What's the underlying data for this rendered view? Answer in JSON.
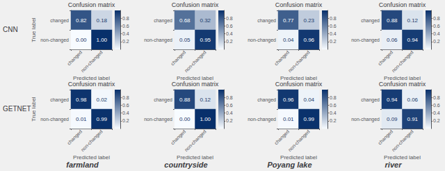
{
  "chart_data": [
    {
      "type": "heatmap",
      "title": "Confusion matrix",
      "xlabel": "Predicted label",
      "ylabel": "True label",
      "x": [
        "changed",
        "non-changed"
      ],
      "y": [
        "changed",
        "non-changed"
      ],
      "values": [
        [
          0.82,
          0.18
        ],
        [
          0.0,
          1.0
        ]
      ],
      "value_labels": [
        [
          "0.82",
          "0.18"
        ],
        [
          "0.00",
          "1.00"
        ]
      ],
      "colorbar": {
        "range": [
          0.0,
          1.0
        ],
        "ticks": [
          0.2,
          0.4,
          0.6,
          0.8
        ]
      },
      "data_labels": true,
      "color": "#08306b"
    },
    {
      "type": "heatmap",
      "title": "Confusion matrix",
      "xlabel": "Predicted label",
      "x": [
        "changed",
        "non-changed"
      ],
      "y": [
        "changed",
        "non-changed"
      ],
      "values": [
        [
          0.68,
          0.32
        ],
        [
          0.05,
          0.95
        ]
      ],
      "value_labels": [
        [
          "0.68",
          "0.32"
        ],
        [
          "0.05",
          "0.95"
        ]
      ],
      "colorbar": {
        "range": [
          0.0,
          1.0
        ],
        "ticks": [
          0.2,
          0.4,
          0.6,
          0.8
        ]
      },
      "data_labels": true,
      "color": "#08306b"
    },
    {
      "type": "heatmap",
      "title": "Confusion matrix",
      "xlabel": "Predicted label",
      "x": [
        "changed",
        "non-changed"
      ],
      "y": [
        "changed",
        "non-changed"
      ],
      "values": [
        [
          0.77,
          0.23
        ],
        [
          0.04,
          0.96
        ]
      ],
      "value_labels": [
        [
          "0.77",
          "0.23"
        ],
        [
          "0.04",
          "0.96"
        ]
      ],
      "colorbar": {
        "range": [
          0.0,
          1.0
        ],
        "ticks": [
          0.2,
          0.4,
          0.6,
          0.8
        ]
      },
      "data_labels": true,
      "color": "#08306b"
    },
    {
      "type": "heatmap",
      "title": "Confusion matrix",
      "xlabel": "Predicted label",
      "x": [
        "changed",
        "non-changed"
      ],
      "y": [
        "changed",
        "non-changed"
      ],
      "values": [
        [
          0.88,
          0.12
        ],
        [
          0.06,
          0.94
        ]
      ],
      "value_labels": [
        [
          "0.88",
          "0.12"
        ],
        [
          "0.06",
          "0.94"
        ]
      ],
      "colorbar": {
        "range": [
          0.0,
          1.0
        ],
        "ticks": [
          0.2,
          0.4,
          0.6,
          0.8
        ]
      },
      "data_labels": true,
      "color": "#08306b"
    },
    {
      "type": "heatmap",
      "title": "Confusion matrix",
      "xlabel": "Predicted label",
      "ylabel": "True label",
      "x": [
        "changed",
        "non-changed"
      ],
      "y": [
        "changed",
        "non-changed"
      ],
      "values": [
        [
          0.98,
          0.02
        ],
        [
          0.01,
          0.99
        ]
      ],
      "value_labels": [
        [
          "0.98",
          "0.02"
        ],
        [
          "0.01",
          "0.99"
        ]
      ],
      "colorbar": {
        "range": [
          0.0,
          1.0
        ],
        "ticks": [
          0.2,
          0.4,
          0.6,
          0.8
        ]
      },
      "data_labels": true,
      "color": "#08306b"
    },
    {
      "type": "heatmap",
      "title": "Confusion matrix",
      "xlabel": "Predicted label",
      "x": [
        "changed",
        "non-changed"
      ],
      "y": [
        "changed",
        "non-changed"
      ],
      "values": [
        [
          0.88,
          0.12
        ],
        [
          0.0,
          1.0
        ]
      ],
      "value_labels": [
        [
          "0.88",
          "0.12"
        ],
        [
          "0.00",
          "1.00"
        ]
      ],
      "colorbar": {
        "range": [
          0.0,
          1.0
        ],
        "ticks": [
          0.2,
          0.4,
          0.6,
          0.8
        ]
      },
      "data_labels": true,
      "color": "#08306b"
    },
    {
      "type": "heatmap",
      "title": "Confusion matrix",
      "xlabel": "Predicted label",
      "x": [
        "changed",
        "non-changed"
      ],
      "y": [
        "changed",
        "non-changed"
      ],
      "values": [
        [
          0.96,
          0.04
        ],
        [
          0.01,
          0.99
        ]
      ],
      "value_labels": [
        [
          "0.96",
          "0.04"
        ],
        [
          "0.01",
          "0.99"
        ]
      ],
      "colorbar": {
        "range": [
          0.0,
          1.0
        ],
        "ticks": [
          0.2,
          0.4,
          0.6,
          0.8
        ]
      },
      "data_labels": true,
      "color": "#08306b"
    },
    {
      "type": "heatmap",
      "title": "Confusion matrix",
      "xlabel": "Predicted label",
      "x": [
        "changed",
        "non-changed"
      ],
      "y": [
        "changed",
        "non-changed"
      ],
      "values": [
        [
          0.94,
          0.06
        ],
        [
          0.09,
          0.91
        ]
      ],
      "value_labels": [
        [
          "0.94",
          "0.06"
        ],
        [
          "0.09",
          "0.91"
        ]
      ],
      "colorbar": {
        "range": [
          0.0,
          1.0
        ],
        "ticks": [
          0.2,
          0.4,
          0.6,
          0.8
        ]
      },
      "data_labels": true,
      "color": "#08306b"
    }
  ],
  "row_labels": [
    "CNN",
    "GETNET"
  ],
  "col_labels": [
    "farmland",
    "countryside",
    "Poyang lake",
    "river"
  ]
}
